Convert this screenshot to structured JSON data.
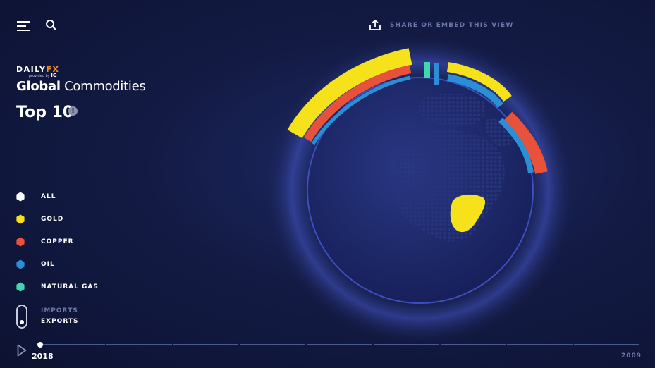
{
  "header": {
    "share_label": "SHARE OR EMBED THIS VIEW"
  },
  "brand": {
    "name_daily": "DAILY",
    "name_fx": "FX",
    "provided_by": "provided by",
    "provider": "IG"
  },
  "page": {
    "title_strong": "Global",
    "title_rest": "Commodities",
    "subtitle": "Top 10",
    "info_icon": "!"
  },
  "legend": [
    {
      "label": "ALL",
      "color": "#ffffff"
    },
    {
      "label": "GOLD",
      "color": "#f5e21a"
    },
    {
      "label": "COPPER",
      "color": "#e8513a"
    },
    {
      "label": "OIL",
      "color": "#2b8fd6"
    },
    {
      "label": "NATURAL GAS",
      "color": "#3fd6b0"
    }
  ],
  "trade_toggle": {
    "imports_label": "IMPORTS",
    "exports_label": "EXPORTS",
    "selected": "EXPORTS"
  },
  "timeline": {
    "start_year": "2018",
    "end_year": "2009",
    "segments": 9
  },
  "colors": {
    "background": "#131b44",
    "muted_text": "#6c78a8",
    "globe_land": "#25306a",
    "gold": "#f5e21a",
    "copper": "#e8513a",
    "oil": "#2b8fd6",
    "natural_gas": "#3fd6b0"
  }
}
